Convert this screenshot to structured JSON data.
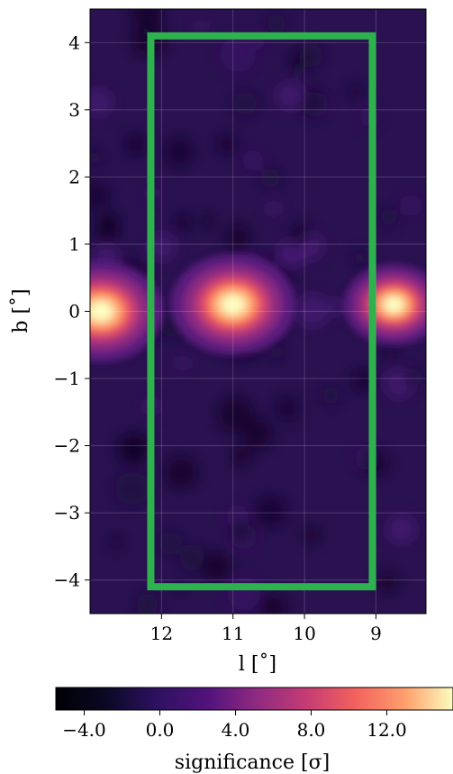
{
  "chart_data": {
    "type": "heatmap",
    "title": "",
    "xlabel": "l [˚]",
    "ylabel": "b [˚]",
    "x_axis": {
      "reversed": true,
      "ticks": [
        "12",
        "11",
        "10",
        "9"
      ],
      "tick_values": [
        12,
        11,
        10,
        9
      ],
      "xlim": [
        13,
        8.3
      ]
    },
    "y_axis": {
      "ticks": [
        "−4",
        "−3",
        "−2",
        "−1",
        "0",
        "1",
        "2",
        "3",
        "4"
      ],
      "tick_values": [
        -4,
        -3,
        -2,
        -1,
        0,
        1,
        2,
        3,
        4
      ],
      "ylim": [
        -4.5,
        4.5
      ]
    },
    "grid": true,
    "colormap": "magma",
    "colorbar": {
      "label": "significance [σ]",
      "range": [
        -5.5,
        15.5
      ],
      "ticks": [
        "−4.0",
        "0.0",
        "4.0",
        "8.0",
        "12.0"
      ],
      "tick_values": [
        -4,
        0,
        4,
        8,
        12
      ]
    },
    "sources": [
      {
        "l": 12.85,
        "b": 0.0,
        "peak_sigma": 15
      },
      {
        "l": 11.0,
        "b": 0.1,
        "peak_sigma": 15
      },
      {
        "l": 8.75,
        "b": 0.1,
        "peak_sigma": 12
      }
    ],
    "region": {
      "l_min": 9.05,
      "l_max": 12.15,
      "b_min": -4.1,
      "b_max": 4.1,
      "color": "#2db24e"
    }
  }
}
